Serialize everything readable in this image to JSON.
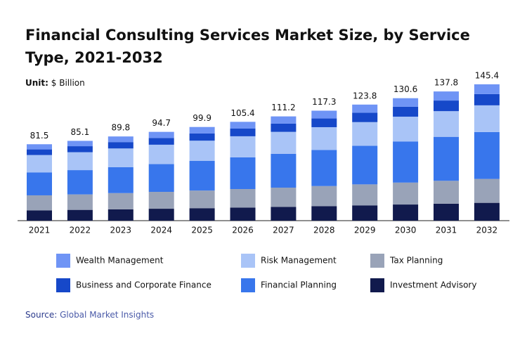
{
  "chart_data": {
    "type": "stacked-bar",
    "title": "Financial Consulting Services Market Size, by Service Type, 2021-2032",
    "unit_label": "Unit:",
    "unit": "$ Billion",
    "source_label": "Source:",
    "source": "Global Market Insights",
    "categories": [
      "2021",
      "2022",
      "2023",
      "2024",
      "2025",
      "2026",
      "2027",
      "2028",
      "2029",
      "2030",
      "2031",
      "2032"
    ],
    "totals": [
      81.5,
      85.1,
      89.8,
      94.7,
      99.9,
      105.4,
      111.2,
      117.3,
      123.8,
      130.6,
      137.8,
      145.4
    ],
    "series": [
      {
        "name": "Investment Advisory",
        "color": "#111a4d",
        "values": [
          11.0,
          11.5,
          12.1,
          12.7,
          13.3,
          14.0,
          14.7,
          15.5,
          16.3,
          17.2,
          18.1,
          19.0
        ]
      },
      {
        "name": "Tax Planning",
        "color": "#99a3b8",
        "values": [
          16.0,
          16.5,
          17.3,
          18.0,
          18.8,
          19.7,
          20.5,
          21.4,
          22.4,
          23.4,
          24.4,
          25.5
        ]
      },
      {
        "name": "Financial Planning",
        "color": "#3876ec",
        "values": [
          24.5,
          25.9,
          27.7,
          29.6,
          31.6,
          33.8,
          36.1,
          38.5,
          41.1,
          43.9,
          46.9,
          50.0
        ]
      },
      {
        "name": "Risk Management",
        "color": "#a9c4f7",
        "values": [
          18.5,
          19.1,
          19.9,
          20.7,
          21.6,
          22.5,
          23.4,
          24.3,
          25.3,
          26.4,
          27.4,
          28.5
        ]
      },
      {
        "name": "Business and Corporate Finance",
        "color": "#1648c9",
        "values": [
          6.0,
          6.4,
          6.8,
          7.2,
          7.7,
          8.2,
          8.8,
          9.3,
          10.0,
          10.6,
          11.3,
          12.0
        ]
      },
      {
        "name": "Wealth Management",
        "color": "#6f94f5",
        "values": [
          5.5,
          5.7,
          6.0,
          6.5,
          6.9,
          7.2,
          7.7,
          8.3,
          8.7,
          9.1,
          9.7,
          10.4
        ]
      }
    ]
  }
}
